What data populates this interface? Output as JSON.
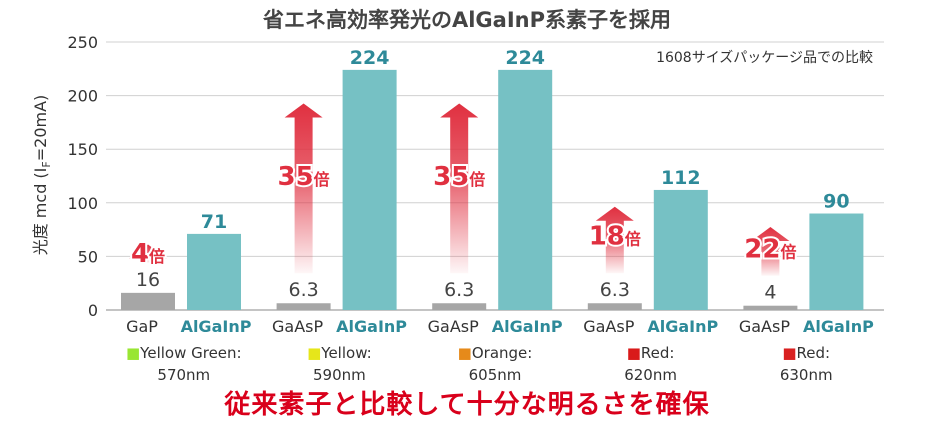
{
  "title": "省エネ高効率発光のAlGaInP系素子を採用",
  "note": "1608サイズパッケージ品での比較",
  "bottom_caption": "従来素子と比較して十分な明るさを確保",
  "colors": {
    "old": "#a6a6a6",
    "new": "#76c1c4",
    "new_label": "#2e8a99",
    "arrow": "#e03040",
    "grid": "#d0d0d0"
  },
  "chart_data": {
    "type": "bar",
    "ylabel_parts": {
      "pre": "光度 mcd (I",
      "sub": "F",
      "post": "=20mA)"
    },
    "ylim": [
      0,
      250
    ],
    "yticks": [
      0,
      50,
      100,
      150,
      200,
      250
    ],
    "grid": true,
    "groups": [
      {
        "old_name": "GaP",
        "new_name": "AlGaInP",
        "old_value": 16,
        "new_value": 71,
        "old_label": "16",
        "new_label": "71",
        "ratio": "4",
        "ratio_suffix": "倍",
        "color_name": "Yellow Green:",
        "wavelength": "570nm",
        "swatch": "#99e633"
      },
      {
        "old_name": "GaAsP",
        "new_name": "AlGaInP",
        "old_value": 6.3,
        "new_value": 224,
        "old_label": "6.3",
        "new_label": "224",
        "ratio": "35",
        "ratio_suffix": "倍",
        "color_name": "Yellow:",
        "wavelength": "590nm",
        "swatch": "#e6e61a"
      },
      {
        "old_name": "GaAsP",
        "new_name": "AlGaInP",
        "old_value": 6.3,
        "new_value": 224,
        "old_label": "6.3",
        "new_label": "224",
        "ratio": "35",
        "ratio_suffix": "倍",
        "color_name": "Orange:",
        "wavelength": "605nm",
        "swatch": "#e68a1a"
      },
      {
        "old_name": "GaAsP",
        "new_name": "AlGaInP",
        "old_value": 6.3,
        "new_value": 112,
        "old_label": "6.3",
        "new_label": "112",
        "ratio": "18",
        "ratio_suffix": "倍",
        "color_name": "Red:",
        "wavelength": "620nm",
        "swatch": "#d91a1a"
      },
      {
        "old_name": "GaAsP",
        "new_name": "AlGaInP",
        "old_value": 4,
        "new_value": 90,
        "old_label": "4",
        "new_label": "90",
        "ratio": "22",
        "ratio_suffix": "倍",
        "color_name": "Red:",
        "wavelength": "630nm",
        "swatch": "#d92020"
      }
    ]
  }
}
